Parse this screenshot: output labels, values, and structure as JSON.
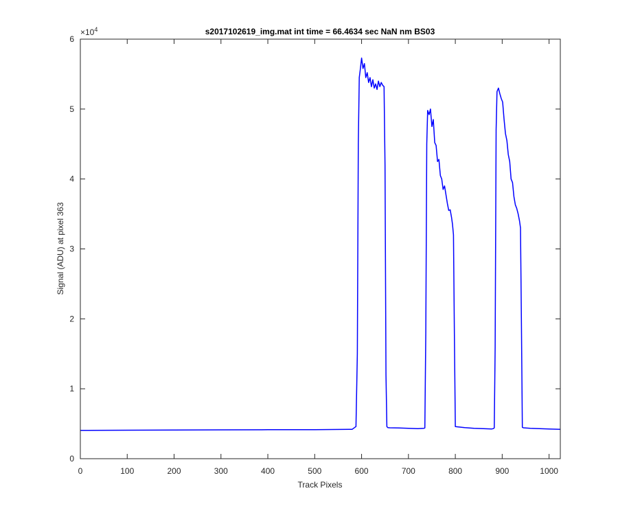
{
  "chart_data": {
    "type": "line",
    "title": "s2017102619_img.mat int time = 66.4634 sec  NaN nm BS03",
    "xlabel": "Track Pixels",
    "ylabel": "Signal (ADU) at pixel 363",
    "xlim": [
      0,
      1024
    ],
    "ylim": [
      0,
      60000
    ],
    "x_ticks": [
      "0",
      "100",
      "200",
      "300",
      "400",
      "500",
      "600",
      "700",
      "800",
      "900",
      "1000"
    ],
    "y_ticks": [
      "0",
      "1",
      "2",
      "3",
      "4",
      "5",
      "6"
    ],
    "y_exponent_label": "×10",
    "y_exponent_power": "4",
    "grid": false,
    "line_color": "#0000ff",
    "series": [
      {
        "x": [
          0,
          100,
          200,
          300,
          400,
          500,
          580,
          588,
          591,
          593,
          595,
          597,
          600,
          603,
          606,
          609,
          612,
          615,
          618,
          621,
          624,
          627,
          630,
          633,
          636,
          639,
          642,
          645,
          648,
          650,
          652,
          654,
          656,
          660,
          680,
          700,
          720,
          733,
          735,
          737,
          739,
          741,
          744,
          747,
          750,
          753,
          756,
          759,
          762,
          765,
          768,
          771,
          774,
          777,
          780,
          783,
          786,
          789,
          792,
          794,
          796,
          798,
          800,
          820,
          840,
          860,
          878,
          881,
          883,
          885,
          887,
          889,
          892,
          895,
          898,
          901,
          904,
          907,
          910,
          913,
          916,
          919,
          922,
          925,
          928,
          931,
          934,
          937,
          939,
          941,
          943,
          945,
          960,
          980,
          1000,
          1024
        ],
        "y": [
          4050,
          4080,
          4100,
          4120,
          4140,
          4150,
          4200,
          4600,
          15000,
          45000,
          54500,
          55500,
          57300,
          55800,
          56500,
          54500,
          55200,
          53800,
          54500,
          53200,
          54200,
          53000,
          53600,
          52800,
          54000,
          53200,
          53800,
          53400,
          53200,
          42000,
          12000,
          4600,
          4450,
          4420,
          4400,
          4350,
          4300,
          4350,
          4400,
          18000,
          45000,
          49800,
          49200,
          50000,
          47500,
          48500,
          45200,
          44800,
          42500,
          42800,
          40500,
          40000,
          38500,
          39000,
          37800,
          36500,
          35500,
          35600,
          34500,
          33500,
          32000,
          18000,
          4600,
          4450,
          4350,
          4300,
          4250,
          4300,
          4400,
          16000,
          47000,
          52500,
          53000,
          52200,
          51500,
          51000,
          48500,
          46500,
          45500,
          43500,
          42500,
          40000,
          39500,
          37500,
          36300,
          35800,
          35000,
          34000,
          33000,
          20000,
          4500,
          4420,
          4350,
          4300,
          4250,
          4200
        ]
      }
    ]
  }
}
